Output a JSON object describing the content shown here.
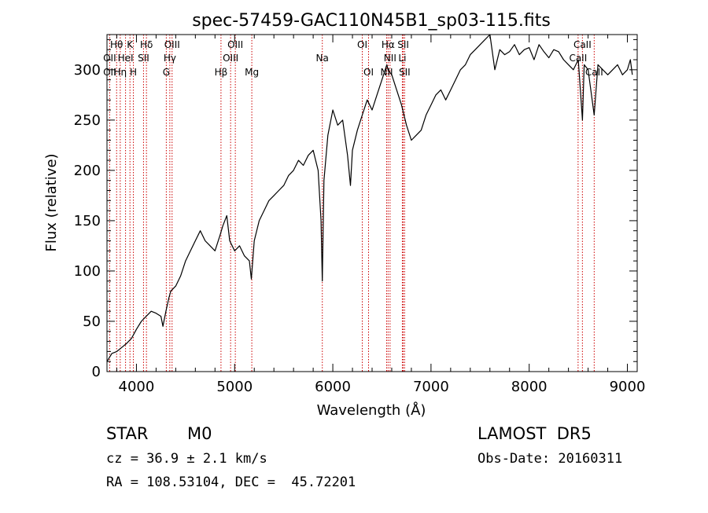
{
  "chart_data": {
    "type": "line",
    "title": "spec-57459-GAC110N45B1_sp03-115.fits",
    "xlabel": "Wavelength (Å)",
    "ylabel": "Flux (relative)",
    "xlim": [
      3700,
      9100
    ],
    "ylim": [
      0,
      335
    ],
    "xticks": [
      4000,
      5000,
      6000,
      7000,
      8000,
      9000
    ],
    "yticks": [
      0,
      50,
      100,
      150,
      200,
      250,
      300
    ],
    "grid": false,
    "series": [
      {
        "x": [
          3700,
          3750,
          3800,
          3850,
          3900,
          3950,
          4000,
          4050,
          4100,
          4150,
          4200,
          4250,
          4270,
          4300,
          4330,
          4350,
          4400,
          4450,
          4500,
          4550,
          4600,
          4650,
          4700,
          4750,
          4800,
          4850,
          4880,
          4920,
          4950,
          5000,
          5050,
          5100,
          5150,
          5170,
          5200,
          5250,
          5300,
          5350,
          5400,
          5450,
          5500,
          5550,
          5600,
          5650,
          5700,
          5750,
          5800,
          5850,
          5880,
          5893,
          5910,
          5950,
          6000,
          6050,
          6100,
          6150,
          6180,
          6200,
          6250,
          6300,
          6350,
          6400,
          6450,
          6500,
          6550,
          6563,
          6600,
          6650,
          6700,
          6750,
          6800,
          6850,
          6900,
          6950,
          7000,
          7050,
          7100,
          7150,
          7200,
          7250,
          7300,
          7350,
          7400,
          7450,
          7500,
          7550,
          7600,
          7650,
          7700,
          7750,
          7800,
          7850,
          7900,
          7950,
          8000,
          8050,
          8100,
          8150,
          8200,
          8250,
          8300,
          8350,
          8400,
          8450,
          8500,
          8542,
          8560,
          8600,
          8662,
          8700,
          8750,
          8800,
          8850,
          8900,
          8950,
          9000,
          9030,
          9050
        ],
        "y": [
          10,
          18,
          20,
          24,
          28,
          33,
          42,
          50,
          55,
          60,
          58,
          55,
          45,
          60,
          73,
          80,
          85,
          95,
          110,
          120,
          130,
          140,
          130,
          125,
          120,
          135,
          145,
          155,
          130,
          120,
          125,
          115,
          110,
          92,
          130,
          150,
          160,
          170,
          175,
          180,
          185,
          195,
          200,
          210,
          205,
          215,
          220,
          200,
          150,
          90,
          190,
          235,
          260,
          245,
          250,
          215,
          185,
          220,
          240,
          255,
          270,
          260,
          275,
          290,
          305,
          300,
          295,
          280,
          265,
          245,
          230,
          235,
          240,
          255,
          265,
          275,
          280,
          270,
          280,
          290,
          300,
          305,
          315,
          320,
          325,
          330,
          335,
          300,
          320,
          315,
          318,
          325,
          315,
          320,
          322,
          310,
          325,
          318,
          312,
          320,
          318,
          310,
          305,
          300,
          310,
          250,
          305,
          300,
          255,
          305,
          300,
          295,
          300,
          305,
          295,
          300,
          310,
          295
        ]
      }
    ],
    "line_ids": [
      {
        "label": "Hθ",
        "wl": 3798,
        "row": 1
      },
      {
        "label": "K",
        "wl": 3934,
        "row": 1
      },
      {
        "label": "Hδ",
        "wl": 4102,
        "row": 1
      },
      {
        "label": "OIII",
        "wl": 4363,
        "row": 1
      },
      {
        "label": "OIII",
        "wl": 5007,
        "row": 1
      },
      {
        "label": "OI",
        "wl": 6300,
        "row": 1
      },
      {
        "label": "Hα",
        "wl": 6563,
        "row": 1
      },
      {
        "label": "SII",
        "wl": 6717,
        "row": 1
      },
      {
        "label": "CaII",
        "wl": 8542,
        "row": 1
      },
      {
        "label": "OII",
        "wl": 3727,
        "row": 2
      },
      {
        "label": "HeI",
        "wl": 3889,
        "row": 2
      },
      {
        "label": "SII",
        "wl": 4072,
        "row": 2
      },
      {
        "label": "Hγ",
        "wl": 4340,
        "row": 2
      },
      {
        "label": "OIII",
        "wl": 4959,
        "row": 2
      },
      {
        "label": "Na",
        "wl": 5893,
        "row": 2
      },
      {
        "label": "NII",
        "wl": 6583,
        "row": 2
      },
      {
        "label": "Li",
        "wl": 6708,
        "row": 2
      },
      {
        "label": "CaII",
        "wl": 8498,
        "row": 2
      },
      {
        "label": "OII",
        "wl": 3727,
        "row": 3
      },
      {
        "label": "Hη",
        "wl": 3835,
        "row": 3
      },
      {
        "label": "H",
        "wl": 3969,
        "row": 3
      },
      {
        "label": "G",
        "wl": 4304,
        "row": 3
      },
      {
        "label": "Hβ",
        "wl": 4861,
        "row": 3
      },
      {
        "label": "Mg",
        "wl": 5175,
        "row": 3
      },
      {
        "label": "OI",
        "wl": 6364,
        "row": 3
      },
      {
        "label": "NII",
        "wl": 6548,
        "row": 3
      },
      {
        "label": "SII",
        "wl": 6731,
        "row": 3
      },
      {
        "label": "CaII",
        "wl": 8662,
        "row": 3
      }
    ],
    "marker_lines": [
      3727,
      3798,
      3835,
      3889,
      3934,
      3969,
      4072,
      4102,
      4304,
      4340,
      4363,
      4861,
      4959,
      5007,
      5175,
      5893,
      6300,
      6364,
      6548,
      6563,
      6583,
      6708,
      6717,
      6731,
      8498,
      8542,
      8662
    ],
    "colors": {
      "spectrum": "#000000",
      "markers": "#cc0000"
    }
  },
  "info": {
    "object_class": "STAR",
    "subclass": "M0",
    "survey": "LAMOST  DR5",
    "cz": "cz = 36.9 ± 2.1 km/s",
    "obs_date": "Obs-Date: 20160311",
    "coords": "RA = 108.53104, DEC =  45.72201"
  }
}
